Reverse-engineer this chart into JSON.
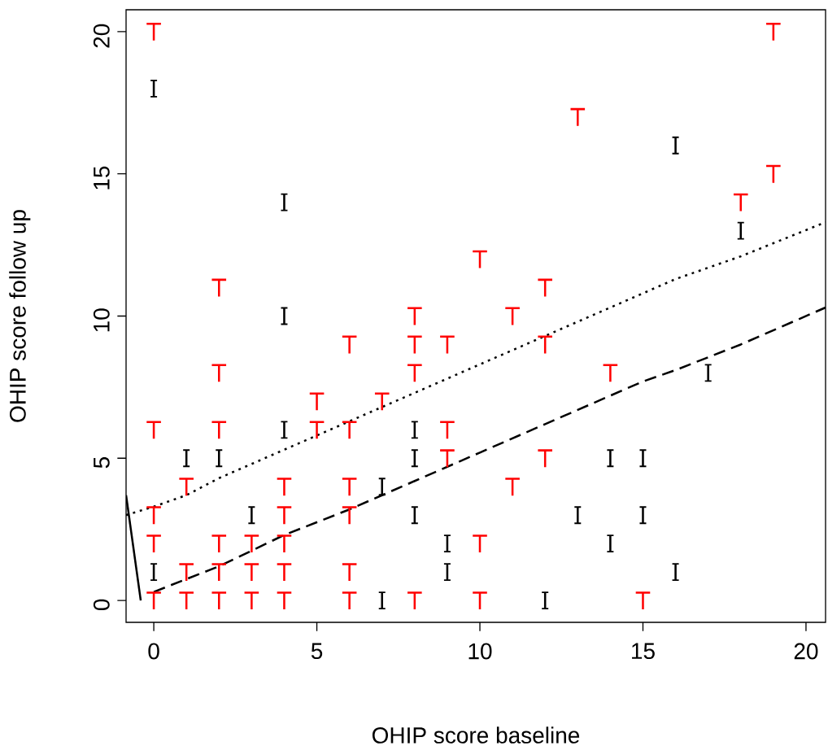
{
  "chart_data": {
    "type": "scatter",
    "xlabel": "OHIP score baseline",
    "ylabel": "OHIP score follow up",
    "xlim": [
      -0.85,
      20.6
    ],
    "ylim": [
      -0.77,
      20.77
    ],
    "xticks": [
      0,
      5,
      10,
      15,
      20
    ],
    "yticks": [
      0,
      5,
      10,
      15,
      20
    ],
    "series": [
      {
        "color": "#ff0000",
        "x": [
          0,
          19,
          13,
          19,
          18,
          10,
          2,
          12,
          8,
          11,
          6,
          8,
          9,
          12,
          2,
          8,
          14,
          5,
          7,
          0,
          2,
          5,
          6,
          9,
          9,
          12,
          1,
          4,
          6,
          11,
          0,
          4,
          6,
          0,
          2,
          3,
          4,
          10,
          1,
          2,
          3,
          4,
          6,
          0,
          1,
          2,
          3,
          4,
          6,
          8,
          10,
          15
        ],
        "values": [
          20,
          20,
          17,
          15,
          14,
          12,
          11,
          11,
          10,
          10,
          9,
          9,
          9,
          9,
          8,
          8,
          8,
          7,
          7,
          6,
          6,
          6,
          6,
          6,
          5,
          5,
          4,
          4,
          4,
          4,
          3,
          3,
          3,
          2,
          2,
          2,
          2,
          2,
          1,
          1,
          1,
          1,
          1,
          0,
          0,
          0,
          0,
          0,
          0,
          0,
          0,
          0
        ]
      },
      {
        "color": "#000000",
        "x": [
          0,
          16,
          4,
          18,
          4,
          17,
          4,
          8,
          1,
          2,
          8,
          14,
          15,
          7,
          3,
          8,
          13,
          15,
          9,
          14,
          0,
          9,
          16,
          7,
          12
        ],
        "values": [
          18,
          16,
          14,
          13,
          10,
          8,
          6,
          6,
          5,
          5,
          5,
          5,
          5,
          4,
          3,
          3,
          3,
          3,
          2,
          2,
          1,
          1,
          1,
          0,
          0
        ]
      },
      {
        "type": "line",
        "color": "#000000",
        "line_style": "dotted",
        "x": [
          -0.85,
          0,
          1,
          2,
          3,
          4,
          5,
          6,
          8,
          10,
          12,
          14,
          16,
          18,
          20.6
        ],
        "values": [
          3.0,
          3.3,
          3.7,
          4.3,
          4.8,
          5.3,
          5.8,
          6.3,
          7.3,
          8.3,
          9.3,
          10.3,
          11.3,
          12.1,
          13.3
        ]
      },
      {
        "type": "line",
        "color": "#000000",
        "line_style": "dashed",
        "x": [
          0,
          2,
          4,
          6,
          8,
          10,
          12,
          14,
          15,
          16,
          18,
          20.6
        ],
        "values": [
          0.3,
          1.2,
          2.3,
          3.2,
          4.2,
          5.2,
          6.2,
          7.2,
          7.7,
          8.1,
          9.0,
          10.3
        ]
      },
      {
        "type": "line",
        "color": "#000000",
        "line_style": "solid",
        "x": [
          -0.85,
          -0.4
        ],
        "values": [
          3.7,
          0
        ]
      }
    ]
  }
}
